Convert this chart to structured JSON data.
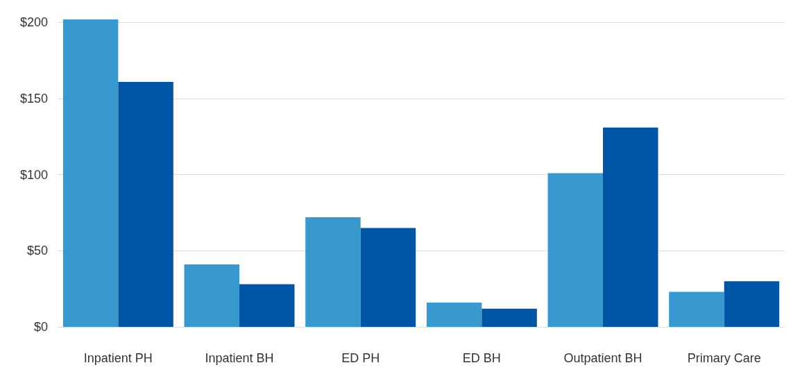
{
  "chart_data": {
    "type": "bar",
    "categories": [
      "Inpatient PH",
      "Inpatient BH",
      "ED PH",
      "ED BH",
      "Outpatient BH",
      "Primary Care"
    ],
    "series": [
      {
        "color": "#3899cf",
        "values": [
          202,
          41,
          72,
          16,
          101,
          23
        ]
      },
      {
        "color": "#0055a5",
        "values": [
          161,
          28,
          65,
          12,
          131,
          30
        ]
      }
    ],
    "ylim": [
      0,
      202
    ],
    "yticks": [
      {
        "value": 0,
        "label": "$0"
      },
      {
        "value": 50,
        "label": "$50"
      },
      {
        "value": 100,
        "label": "$100"
      },
      {
        "value": 150,
        "label": "$150"
      },
      {
        "value": 200,
        "label": "$200"
      }
    ],
    "grid": "y"
  }
}
